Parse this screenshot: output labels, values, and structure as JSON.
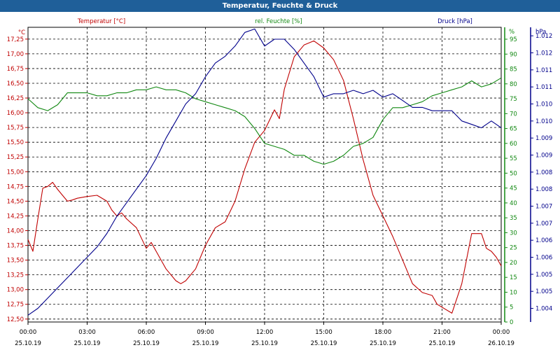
{
  "window": {
    "title": "Temperatur, Feuchte & Druck"
  },
  "colors": {
    "temperature": "#c00000",
    "humidity": "#118811",
    "pressure": "#00008b",
    "grid": "#000000"
  },
  "chart_data": {
    "type": "line",
    "title": "Temperatur, Feuchte & Druck",
    "x_ticks": [
      {
        "time": "00:00",
        "date": "25.10.19"
      },
      {
        "time": "03:00",
        "date": "25.10.19"
      },
      {
        "time": "06:00",
        "date": "25.10.19"
      },
      {
        "time": "09:00",
        "date": "25.10.19"
      },
      {
        "time": "12:00",
        "date": "25.10.19"
      },
      {
        "time": "15:00",
        "date": "25.10.19"
      },
      {
        "time": "18:00",
        "date": "25.10.19"
      },
      {
        "time": "21:00",
        "date": "25.10.19"
      },
      {
        "time": "00:00",
        "date": "26.10.19"
      }
    ],
    "x_range_hours": [
      0,
      24
    ],
    "grid": true,
    "axes": {
      "temperature": {
        "label": "Temperatur [°C]",
        "unit": "°C",
        "ylim": [
          12.45,
          17.45
        ],
        "ticks": [
          "12,50",
          "12,75",
          "13,00",
          "13,25",
          "13,50",
          "13,75",
          "14,00",
          "14,25",
          "14,50",
          "14,75",
          "15,00",
          "15,25",
          "15,50",
          "15,75",
          "16,00",
          "16,25",
          "16,50",
          "16,75",
          "17,00",
          "17,25"
        ]
      },
      "humidity": {
        "label": "rel. Feuchte [%]",
        "unit": "%",
        "ylim": [
          0,
          99
        ],
        "ticks": [
          "0",
          "5",
          "10",
          "15",
          "20",
          "25",
          "30",
          "35",
          "40",
          "45",
          "50",
          "55",
          "60",
          "65",
          "70",
          "75",
          "80",
          "85",
          "90",
          "95"
        ]
      },
      "pressure": {
        "label": "Druck [hPa]",
        "unit": "hPa",
        "ylim": [
          1003.6,
          1012.25
        ],
        "ticks": [
          "1.004",
          "1.005",
          "1.005",
          "1.006",
          "1.006",
          "1.007",
          "1.007",
          "1.008",
          "1.008",
          "1.009",
          "1.009",
          "1.010",
          "1.010",
          "1.011",
          "1.011",
          "1.012",
          "1.012"
        ]
      }
    },
    "series": [
      {
        "name": "Temperatur [°C]",
        "axis": "temperature",
        "x": [
          0,
          0.25,
          0.5,
          0.75,
          1,
          1.25,
          1.5,
          1.75,
          2,
          2.25,
          2.5,
          3,
          3.5,
          4,
          4.25,
          4.5,
          4.75,
          5,
          5.5,
          6,
          6.25,
          6.5,
          7,
          7.5,
          7.75,
          8,
          8.5,
          9,
          9.5,
          10,
          10.5,
          11,
          11.5,
          12,
          12.5,
          12.75,
          13,
          13.5,
          14,
          14.5,
          15,
          15.5,
          16,
          16.5,
          17,
          17.5,
          18,
          18.5,
          19,
          19.5,
          20,
          20.5,
          20.75,
          21,
          21.5,
          22,
          22.5,
          23,
          23.25,
          23.5,
          23.75,
          24
        ],
        "values": [
          13.85,
          13.65,
          14.2,
          14.72,
          14.75,
          14.82,
          14.7,
          14.6,
          14.5,
          14.52,
          14.55,
          14.58,
          14.6,
          14.5,
          14.35,
          14.25,
          14.3,
          14.2,
          14.05,
          13.7,
          13.8,
          13.65,
          13.35,
          13.15,
          13.1,
          13.15,
          13.35,
          13.75,
          14.05,
          14.15,
          14.5,
          15.05,
          15.5,
          15.7,
          16.05,
          15.9,
          16.4,
          16.95,
          17.15,
          17.22,
          17.1,
          16.9,
          16.55,
          15.9,
          15.2,
          14.6,
          14.25,
          13.9,
          13.5,
          13.1,
          12.95,
          12.9,
          12.75,
          12.7,
          12.6,
          13.1,
          13.95,
          13.95,
          13.7,
          13.65,
          13.55,
          13.4
        ]
      },
      {
        "name": "rel. Feuchte [%]",
        "axis": "humidity",
        "x": [
          0,
          0.5,
          1,
          1.5,
          2,
          2.5,
          3,
          3.5,
          4,
          4.5,
          5,
          5.5,
          6,
          6.5,
          7,
          7.5,
          8,
          8.5,
          9,
          9.5,
          10,
          10.5,
          11,
          11.5,
          12,
          12.5,
          13,
          13.5,
          14,
          14.5,
          15,
          15.5,
          16,
          16.5,
          17,
          17.5,
          18,
          18.5,
          19,
          19.5,
          20,
          20.5,
          21,
          21.5,
          22,
          22.5,
          23,
          23.5,
          24
        ],
        "values": [
          75,
          72,
          71,
          73,
          77,
          77,
          77,
          76,
          76,
          77,
          77,
          78,
          78,
          79,
          78,
          78,
          77,
          75,
          74,
          73,
          72,
          71,
          69,
          65,
          60,
          59,
          58,
          56,
          56,
          54,
          53,
          54,
          56,
          59,
          60,
          62,
          68,
          72,
          72,
          73,
          74,
          76,
          77,
          78,
          79,
          81,
          79,
          80,
          82
        ]
      },
      {
        "name": "Druck [hPa]",
        "axis": "pressure",
        "x": [
          0,
          0.5,
          1,
          1.5,
          2,
          2.5,
          3,
          3.5,
          4,
          4.5,
          5,
          5.5,
          6,
          6.5,
          7,
          7.5,
          8,
          8.5,
          9,
          9.5,
          10,
          10.5,
          11,
          11.5,
          12,
          12.5,
          13,
          13.5,
          14,
          14.5,
          15,
          15.5,
          16,
          16.5,
          17,
          17.5,
          18,
          18.5,
          19,
          19.5,
          20,
          20.5,
          21,
          21.5,
          22,
          22.5,
          23,
          23.5,
          24
        ],
        "values": [
          1003.8,
          1004.0,
          1004.3,
          1004.6,
          1004.9,
          1005.2,
          1005.5,
          1005.8,
          1006.2,
          1006.7,
          1007.1,
          1007.5,
          1007.9,
          1008.4,
          1009.0,
          1009.5,
          1010.0,
          1010.3,
          1010.8,
          1011.2,
          1011.4,
          1011.7,
          1012.1,
          1012.2,
          1011.7,
          1011.9,
          1011.9,
          1011.6,
          1011.2,
          1010.8,
          1010.2,
          1010.3,
          1010.3,
          1010.4,
          1010.3,
          1010.4,
          1010.2,
          1010.3,
          1010.1,
          1009.9,
          1009.9,
          1009.8,
          1009.8,
          1009.8,
          1009.5,
          1009.4,
          1009.3,
          1009.5,
          1009.3
        ]
      }
    ]
  }
}
